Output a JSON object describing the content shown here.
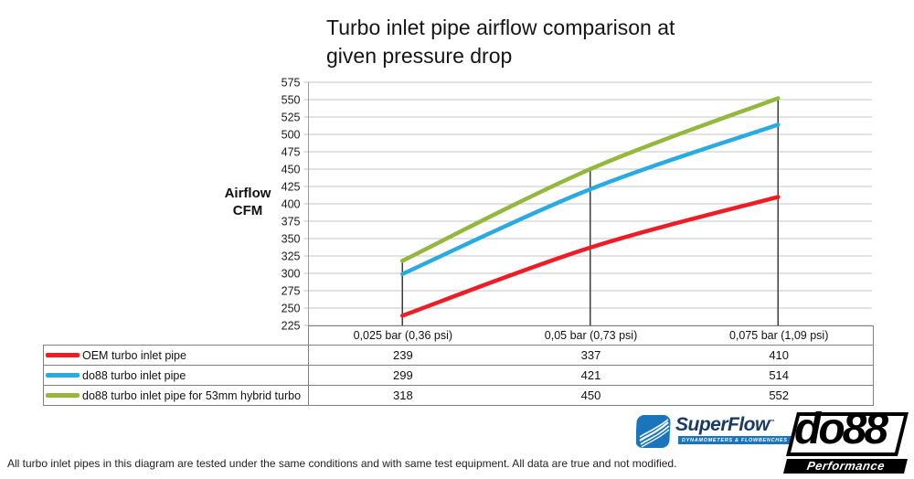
{
  "title": {
    "line1": "Turbo inlet pipe airflow comparison at",
    "line2": "given pressure drop"
  },
  "ylabel_display": {
    "line1": "Airflow",
    "line2": "CFM"
  },
  "chart_data": {
    "type": "line",
    "title": "Turbo inlet pipe airflow comparison at given pressure drop",
    "categories": [
      "0,025 bar (0,36 psi)",
      "0,05 bar (0,73 psi)",
      "0,075 bar (1,09 psi)"
    ],
    "series": [
      {
        "name": "OEM turbo inlet pipe",
        "color": "#ee1c25",
        "values": [
          239,
          337,
          410
        ]
      },
      {
        "name": "do88 turbo inlet pipe",
        "color": "#29abe2",
        "values": [
          299,
          421,
          514
        ]
      },
      {
        "name": "do88 turbo inlet pipe for 53mm hybrid turbo",
        "color": "#94b83d",
        "values": [
          318,
          450,
          552
        ]
      }
    ],
    "xlabel": "",
    "ylabel": "Airflow CFM",
    "ylim": [
      225,
      575
    ],
    "ytick_step": 25,
    "grid": true,
    "drop_lines": true,
    "legend_position": "table-below-left",
    "gridline_color": "#c4c4c4",
    "axis_color": "#9b9b9b",
    "drop_line_color": "#3c3c3c"
  },
  "footer": {
    "note": "All turbo inlet pipes in this diagram are tested under the same conditions and with same test equipment. All data are true and not modified."
  },
  "logos": {
    "superflow": {
      "name": "SuperFlow",
      "tm": "™",
      "tagline": "DYNAMOMETERS & FLOWBENCHES",
      "brand_color": "#1b75bc"
    },
    "do88": {
      "name": "do88",
      "tagline": "Performance"
    }
  }
}
